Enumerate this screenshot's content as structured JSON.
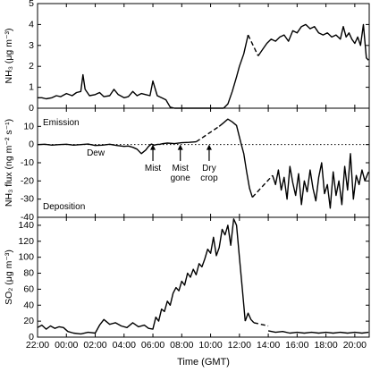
{
  "chart_data": [
    {
      "type": "line",
      "ylabel": "NH₃ (μg m⁻³)",
      "ylim": [
        0,
        5
      ],
      "yticks": [
        0,
        1,
        2,
        3,
        4,
        5
      ],
      "xlim": [
        22,
        45
      ],
      "grid": false,
      "series": [
        {
          "segments": [
            {
              "style": "solid",
              "x": [
                22.0,
                22.3,
                22.6,
                23.0,
                23.3,
                23.6,
                24.0,
                24.4,
                24.7,
                25.0,
                25.15,
                25.3,
                25.6,
                26.0,
                26.3,
                26.6,
                27.0,
                27.3,
                27.6,
                28.0,
                28.3,
                28.6,
                28.9,
                29.2,
                29.5,
                29.8,
                30.0,
                30.3,
                30.6,
                30.9,
                31.2,
                31.5,
                31.8,
                32.0,
                32.5,
                33.0,
                33.5,
                34.0,
                34.3,
                34.6,
                34.9
              ],
              "y": [
                0.5,
                0.5,
                0.45,
                0.5,
                0.6,
                0.55,
                0.7,
                0.6,
                0.75,
                0.8,
                1.6,
                0.9,
                0.6,
                0.65,
                0.75,
                0.55,
                0.6,
                0.9,
                0.65,
                0.5,
                0.55,
                0.8,
                0.6,
                0.7,
                0.65,
                0.6,
                1.3,
                0.6,
                0.5,
                0.4,
                0.05,
                0.0,
                0.0,
                0.0,
                0.0,
                0.0,
                0.0,
                0.0,
                0.0,
                0.0,
                0.0
              ]
            },
            {
              "style": "solid",
              "x": [
                34.9,
                35.2,
                35.5,
                35.8,
                36.0,
                36.3,
                36.6
              ],
              "y": [
                0.0,
                0.2,
                0.8,
                1.5,
                2.0,
                2.6,
                3.5
              ]
            },
            {
              "style": "dashed",
              "x": [
                36.6,
                37.3
              ],
              "y": [
                3.5,
                2.5
              ]
            },
            {
              "style": "solid",
              "x": [
                37.3,
                37.6,
                37.9,
                38.2,
                38.5,
                38.8,
                39.1,
                39.4,
                39.7,
                40.0,
                40.3,
                40.6,
                40.9,
                41.2,
                41.5,
                41.8,
                42.1,
                42.4,
                42.7,
                43.0,
                43.2,
                43.4,
                43.6,
                43.8,
                44.0,
                44.2,
                44.4,
                44.6,
                44.8,
                44.95
              ],
              "y": [
                2.5,
                2.8,
                3.1,
                3.3,
                3.2,
                3.4,
                3.5,
                3.2,
                3.7,
                3.6,
                3.9,
                4.0,
                3.8,
                3.9,
                3.6,
                3.5,
                3.6,
                3.4,
                3.5,
                3.3,
                3.9,
                3.4,
                3.6,
                3.3,
                3.1,
                3.4,
                3.0,
                4.0,
                2.4,
                2.3
              ]
            }
          ]
        }
      ]
    },
    {
      "type": "line",
      "ylabel": "NH₃ flux (ng m⁻² s⁻¹)",
      "ylim": [
        -40,
        20
      ],
      "yticks": [
        -40,
        -30,
        -20,
        -10,
        0,
        10
      ],
      "xlim": [
        22,
        45
      ],
      "zero_line": "dotted",
      "annotations": [
        {
          "text": "Emission"
        },
        {
          "text": "Deposition"
        },
        {
          "text": "Dew",
          "x": 24.3
        },
        {
          "text": "Mist",
          "x": 30.0,
          "arrow": true
        },
        {
          "text": "Mist\ngone",
          "x": 31.9,
          "arrow": true
        },
        {
          "text": "Dry\ncrop",
          "x": 33.9,
          "arrow": true
        }
      ],
      "series": [
        {
          "segments": [
            {
              "style": "solid",
              "x": [
                22.0,
                22.5,
                23.0,
                23.5,
                24.0,
                24.5,
                25.0,
                25.5,
                26.0,
                26.5,
                27.0,
                27.5,
                28.0,
                28.3,
                28.6,
                28.9,
                29.2,
                29.5,
                29.7,
                29.9,
                30.1,
                30.3,
                30.5,
                30.7,
                31.0,
                31.5,
                32.0,
                32.5,
                33.0
              ],
              "y": [
                0,
                0.2,
                -0.3,
                0,
                0.2,
                -0.3,
                0,
                0.3,
                -0.5,
                -0.3,
                0.2,
                -0.5,
                -1.0,
                -0.8,
                -1.5,
                -2.5,
                -5.0,
                -3.0,
                -1.0,
                0.3,
                -0.3,
                0.1,
                0.2,
                0.5,
                0.8,
                0.5,
                1.0,
                1.2,
                1.5
              ]
            },
            {
              "style": "dashed",
              "x": [
                33.0,
                34.6
              ],
              "y": [
                1.5,
                10.0
              ]
            },
            {
              "style": "solid",
              "x": [
                34.6,
                34.9,
                35.2,
                35.5,
                35.8,
                36.1
              ],
              "y": [
                10.0,
                12.0,
                14.0,
                12.5,
                10.5,
                1.0
              ]
            },
            {
              "style": "solid",
              "x": [
                36.1,
                36.3,
                36.5,
                36.7,
                36.9
              ],
              "y": [
                1.0,
                -5.0,
                -15.0,
                -24.0,
                -29.0
              ]
            },
            {
              "style": "dashed",
              "x": [
                36.9,
                38.3
              ],
              "y": [
                -29.0,
                -17.0
              ]
            },
            {
              "style": "solid",
              "x": [
                38.3,
                38.5,
                38.7,
                38.9,
                39.1,
                39.3,
                39.5,
                39.7,
                39.9,
                40.1,
                40.3,
                40.5,
                40.7,
                40.9,
                41.1,
                41.3,
                41.5,
                41.7,
                41.9,
                42.1,
                42.3,
                42.5,
                42.7,
                42.9,
                43.1,
                43.3,
                43.5,
                43.7,
                43.9,
                44.1,
                44.3,
                44.5,
                44.7,
                44.95
              ],
              "y": [
                -17.0,
                -22.0,
                -14.0,
                -25.0,
                -18.0,
                -30.0,
                -12.0,
                -21.0,
                -28.0,
                -16.0,
                -33.0,
                -20.0,
                -26.0,
                -14.0,
                -24.0,
                -31.0,
                -18.0,
                -10.0,
                -27.0,
                -22.0,
                -35.0,
                -15.0,
                -28.0,
                -20.0,
                -33.0,
                -12.0,
                -25.0,
                -5.0,
                -30.0,
                -17.0,
                -22.0,
                -14.0,
                -20.0,
                -15.0
              ]
            }
          ]
        }
      ]
    },
    {
      "type": "line",
      "ylabel": "SO₂ (μg m⁻³)",
      "ylim": [
        0,
        150
      ],
      "yticks": [
        0,
        20,
        40,
        60,
        80,
        100,
        120,
        140
      ],
      "xlim": [
        22,
        45
      ],
      "xlabel": "Time (GMT)",
      "xticks": [
        22,
        24,
        26,
        28,
        30,
        32,
        34,
        36,
        38,
        40,
        42,
        44
      ],
      "xticklabels": [
        "22:00",
        "00:00",
        "02:00",
        "04:00",
        "06:00",
        "08:00",
        "10:00",
        "12:00",
        "14:00",
        "16:00",
        "18:00",
        "20:00"
      ],
      "series": [
        {
          "segments": [
            {
              "style": "solid",
              "x": [
                22.0,
                22.3,
                22.6,
                22.9,
                23.2,
                23.5,
                23.8,
                24.1,
                24.5,
                25.0,
                25.5,
                26.0,
                26.3,
                26.6,
                27.0,
                27.4,
                27.8,
                28.2,
                28.6,
                29.0,
                29.4,
                29.7,
                30.0,
                30.2,
                30.4,
                30.6,
                30.8,
                31.0,
                31.2,
                31.4,
                31.6,
                31.8,
                32.0,
                32.2,
                32.4,
                32.6,
                32.8,
                33.0,
                33.2,
                33.4,
                33.6,
                33.8,
                34.0,
                34.2,
                34.4,
                34.6,
                34.8,
                35.0,
                35.2,
                35.4,
                35.6,
                35.8,
                36.0,
                36.2,
                36.4
              ],
              "y": [
                12,
                15,
                10,
                14,
                11,
                13,
                12,
                7,
                5,
                4,
                6,
                5,
                15,
                22,
                16,
                18,
                14,
                12,
                18,
                13,
                15,
                11,
                10,
                25,
                20,
                35,
                32,
                45,
                40,
                55,
                62,
                58,
                70,
                65,
                80,
                75,
                85,
                78,
                92,
                88,
                98,
                110,
                105,
                125,
                102,
                112,
                135,
                128,
                140,
                115,
                148,
                140,
                100,
                60,
                20
              ]
            },
            {
              "style": "solid",
              "x": [
                36.4,
                36.6,
                36.8,
                37.0
              ],
              "y": [
                20,
                30,
                22,
                18
              ]
            },
            {
              "style": "dashed",
              "x": [
                37.0,
                38.0
              ],
              "y": [
                18,
                14
              ]
            },
            {
              "style": "solid",
              "x": [
                38.0,
                38.5,
                39.0,
                39.5,
                40.0,
                40.5,
                41.0,
                41.5,
                42.0,
                42.5,
                43.0,
                43.5,
                44.0,
                44.5,
                44.95
              ],
              "y": [
                8,
                6,
                7,
                5,
                6,
                5,
                6,
                5,
                6,
                5,
                6,
                5,
                6,
                5,
                6
              ]
            }
          ]
        }
      ]
    }
  ]
}
